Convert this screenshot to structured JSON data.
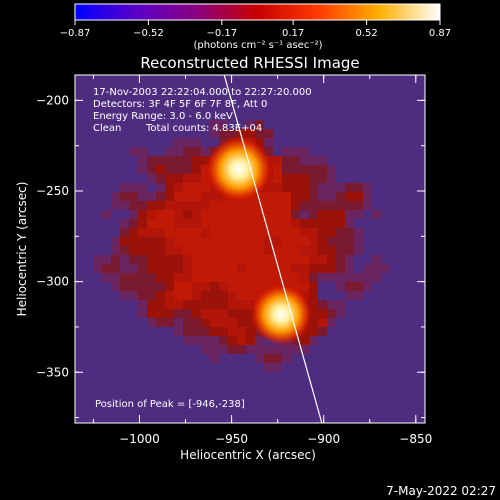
{
  "chart_data": {
    "type": "heatmap",
    "title": "Reconstructed RHESSI Image",
    "xlabel": "Heliocentric X (arcsec)",
    "ylabel": "Heliocentric Y (arcsec)",
    "xlim": [
      -1035,
      -845
    ],
    "ylim": [
      -378,
      -186
    ],
    "x_ticks": [
      -1000,
      -950,
      -900,
      -850
    ],
    "x_tick_labels": [
      "−1000",
      "−950",
      "−900",
      "−850"
    ],
    "y_ticks": [
      -200,
      -250,
      -300,
      -350
    ],
    "y_tick_labels": [
      "−200",
      "−250",
      "−300",
      "−350"
    ],
    "colorbar": {
      "range": [
        -0.87,
        0.87
      ],
      "ticks": [
        -0.87,
        -0.52,
        -0.17,
        0.17,
        0.52,
        0.87
      ],
      "tick_labels": [
        "−0.87",
        "−0.52",
        "−0.17",
        "0.17",
        "0.52",
        "0.87"
      ],
      "units": "(photons cm⁻² s⁻¹ asec⁻²)",
      "colors": [
        "#0000ff",
        "#5a00c8",
        "#8a0080",
        "#c80000",
        "#ff3a00",
        "#ffb000",
        "#ffffff"
      ]
    },
    "sources": [
      {
        "x": -946,
        "y": -238,
        "peak": 0.87
      },
      {
        "x": -923,
        "y": -318,
        "peak": 0.7
      }
    ],
    "limb_line": [
      [
        -954,
        -186
      ],
      [
        -901,
        -378
      ]
    ],
    "annotations": {
      "time": "17-Nov-2003 22:22:04.000 to 22:27:20.000",
      "detectors": "Detectors: 3F 4F 5F 6F 7F 8F, Att 0",
      "energy": "Energy Range: 3.0 - 6.0 keV",
      "clean_label": "Clean",
      "counts": "Total counts: 4.83E+04",
      "peak": "Position of Peak = [-946,-238]"
    }
  },
  "footer": {
    "date": "7-May-2022 02:27"
  }
}
